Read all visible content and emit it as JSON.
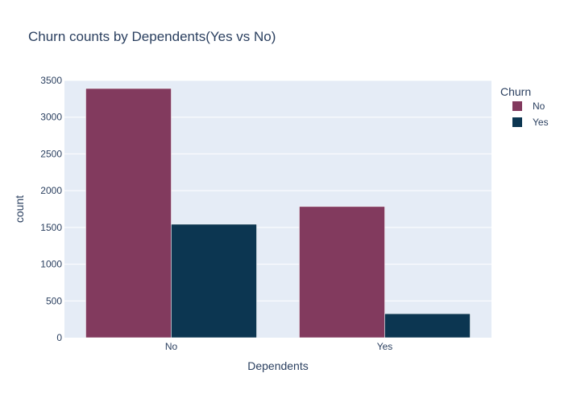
{
  "chart_data": {
    "type": "bar",
    "title": "Churn counts by Dependents(Yes vs No)",
    "xlabel": "Dependents",
    "ylabel": "count",
    "categories": [
      "No",
      "Yes"
    ],
    "ylim": [
      0,
      3500
    ],
    "yticks": [
      0,
      500,
      1000,
      1500,
      2000,
      2500,
      3000,
      3500
    ],
    "grid": true,
    "legend": {
      "title": "Churn",
      "placement": "top-right"
    },
    "series": [
      {
        "name": "No",
        "values": [
          3390,
          1784
        ],
        "color": "#823a5e"
      },
      {
        "name": "Yes",
        "values": [
          1543,
          326
        ],
        "color": "#0c3651"
      }
    ],
    "plot_background": "#e5ecf6"
  }
}
